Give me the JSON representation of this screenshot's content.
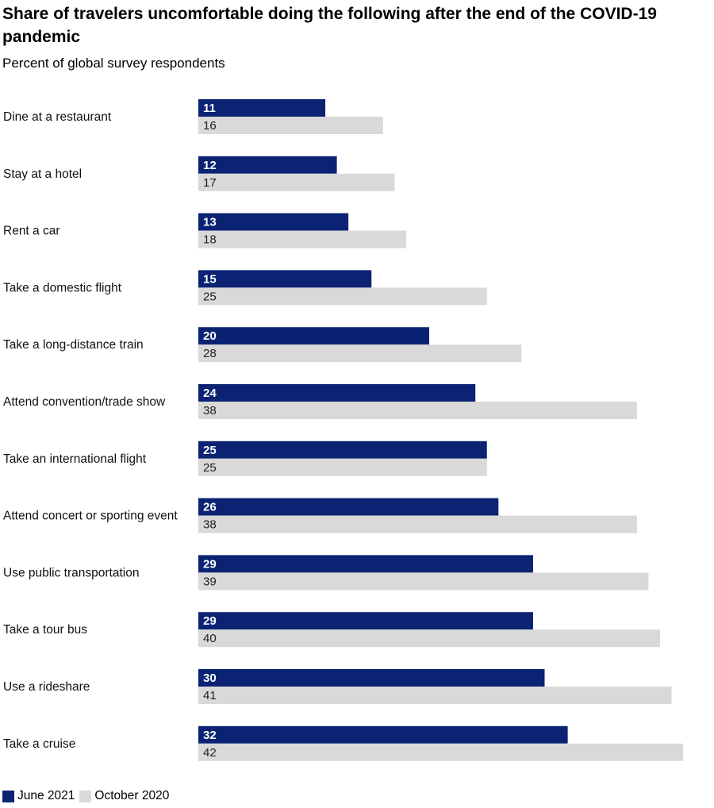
{
  "colors": {
    "june": "#0b2372",
    "october": "#d9d9d9"
  },
  "chart_data": {
    "type": "bar",
    "orientation": "horizontal",
    "title": "Share of travelers uncomfortable doing the following after the end of the COVID-19 pandemic",
    "subtitle": "Percent of global survey respondents",
    "categories": [
      "Dine at a restaurant",
      "Stay at a hotel",
      "Rent a car",
      "Take a domestic flight",
      "Take a long-distance train",
      "Attend convention/trade show",
      "Take an international flight",
      "Attend concert or sporting event",
      "Use public transportation",
      "Take a tour bus",
      "Use a rideshare",
      "Take a cruise"
    ],
    "series": [
      {
        "name": "June 2021",
        "values": [
          11,
          12,
          13,
          15,
          20,
          24,
          25,
          26,
          29,
          29,
          30,
          32
        ]
      },
      {
        "name": "October 2020",
        "values": [
          16,
          17,
          18,
          25,
          28,
          38,
          25,
          38,
          39,
          40,
          41,
          42
        ]
      }
    ],
    "xlim": [
      0,
      42
    ],
    "grid": false,
    "legend_position": "bottom-left"
  }
}
